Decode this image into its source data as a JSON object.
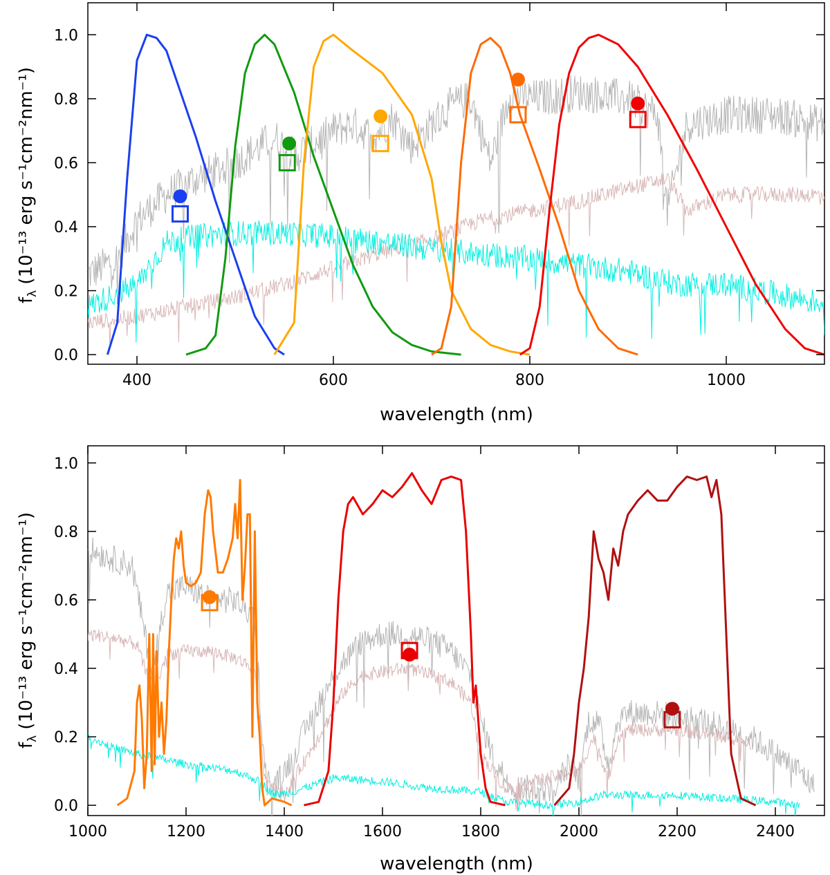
{
  "chart_data": [
    {
      "type": "line",
      "title": "",
      "xlabel": "wavelength (nm)",
      "ylabel_main": "f",
      "ylabel_sub": "λ",
      "ylabel_rest": " (10⁻¹³ erg s⁻¹cm⁻²nm⁻¹)",
      "xlim": [
        350,
        1100
      ],
      "ylim": [
        -0.03,
        1.1
      ],
      "xticks": [
        400,
        600,
        800,
        1000
      ],
      "xtick_labels": [
        "400",
        "600",
        "800",
        "1000"
      ],
      "yticks": [
        0.0,
        0.2,
        0.4,
        0.6,
        0.8,
        1.0
      ],
      "ytick_labels": [
        "0.0",
        "0.2",
        "0.4",
        "0.6",
        "0.8",
        "1.0"
      ],
      "spectra": [
        {
          "name": "grey spectrum",
          "color": "#b4b4b4",
          "noise": 0.06,
          "x": [
            350,
            380,
            400,
            430,
            460,
            500,
            540,
            560,
            600,
            620,
            640,
            660,
            680,
            700,
            720,
            740,
            760,
            780,
            800,
            850,
            900,
            930,
            940,
            960,
            1000,
            1050,
            1100
          ],
          "y": [
            0.25,
            0.3,
            0.42,
            0.5,
            0.55,
            0.6,
            0.68,
            0.62,
            0.7,
            0.72,
            0.68,
            0.74,
            0.65,
            0.72,
            0.78,
            0.8,
            0.6,
            0.82,
            0.8,
            0.82,
            0.8,
            0.75,
            0.45,
            0.72,
            0.75,
            0.75,
            0.72
          ]
        },
        {
          "name": "pink spectrum",
          "color": "#d8b6b6",
          "noise": 0.025,
          "x": [
            350,
            400,
            450,
            500,
            550,
            600,
            650,
            700,
            750,
            800,
            850,
            900,
            940,
            960,
            1000,
            1050,
            1100
          ],
          "y": [
            0.1,
            0.12,
            0.15,
            0.18,
            0.22,
            0.27,
            0.32,
            0.36,
            0.42,
            0.45,
            0.48,
            0.52,
            0.55,
            0.45,
            0.5,
            0.5,
            0.5
          ]
        },
        {
          "name": "cyan spectrum",
          "color": "#00efe0",
          "noise": 0.04,
          "x": [
            350,
            400,
            430,
            460,
            500,
            550,
            600,
            700,
            800,
            900,
            950,
            1000,
            1050,
            1100
          ],
          "y": [
            0.15,
            0.22,
            0.35,
            0.37,
            0.38,
            0.38,
            0.37,
            0.33,
            0.3,
            0.26,
            0.22,
            0.22,
            0.19,
            0.16
          ]
        }
      ],
      "series": [
        {
          "name": "blue filter",
          "color": "#1a3ff0",
          "x": [
            370,
            380,
            390,
            400,
            410,
            420,
            430,
            440,
            460,
            480,
            500,
            520,
            540,
            550
          ],
          "y": [
            0.0,
            0.1,
            0.55,
            0.92,
            1.0,
            0.99,
            0.95,
            0.86,
            0.68,
            0.48,
            0.3,
            0.12,
            0.02,
            0.0
          ]
        },
        {
          "name": "green filter",
          "color": "#109a10",
          "x": [
            450,
            470,
            480,
            490,
            500,
            510,
            520,
            530,
            540,
            560,
            580,
            600,
            620,
            640,
            660,
            680,
            700,
            730
          ],
          "y": [
            0.0,
            0.02,
            0.06,
            0.3,
            0.65,
            0.88,
            0.97,
            1.0,
            0.97,
            0.82,
            0.62,
            0.45,
            0.28,
            0.15,
            0.07,
            0.03,
            0.01,
            0.0
          ]
        },
        {
          "name": "yellow filter",
          "color": "#ffa800",
          "x": [
            540,
            560,
            570,
            580,
            590,
            600,
            620,
            650,
            680,
            700,
            710,
            720,
            740,
            760,
            780,
            800
          ],
          "y": [
            0.0,
            0.1,
            0.6,
            0.9,
            0.98,
            1.0,
            0.95,
            0.88,
            0.75,
            0.55,
            0.35,
            0.2,
            0.08,
            0.03,
            0.01,
            0.0
          ]
        },
        {
          "name": "orange filter",
          "color": "#ff6a00",
          "x": [
            700,
            710,
            720,
            730,
            740,
            750,
            760,
            770,
            780,
            790,
            810,
            830,
            850,
            870,
            890,
            910
          ],
          "y": [
            0.0,
            0.02,
            0.15,
            0.6,
            0.88,
            0.97,
            0.99,
            0.96,
            0.88,
            0.75,
            0.58,
            0.4,
            0.2,
            0.08,
            0.02,
            0.0
          ]
        },
        {
          "name": "red filter",
          "color": "#f00000",
          "x": [
            790,
            800,
            810,
            820,
            830,
            840,
            850,
            860,
            870,
            890,
            910,
            940,
            970,
            1000,
            1030,
            1060,
            1080,
            1100
          ],
          "y": [
            0.0,
            0.02,
            0.15,
            0.45,
            0.72,
            0.88,
            0.96,
            0.99,
            1.0,
            0.97,
            0.9,
            0.75,
            0.58,
            0.4,
            0.22,
            0.08,
            0.02,
            0.0
          ]
        }
      ],
      "markers": [
        {
          "kind": "circle",
          "x": 444,
          "y": 0.495,
          "color": "#1a3ff0"
        },
        {
          "kind": "square",
          "x": 444,
          "y": 0.44,
          "color": "#1a3ff0"
        },
        {
          "kind": "circle",
          "x": 555,
          "y": 0.66,
          "color": "#109a10"
        },
        {
          "kind": "square",
          "x": 553,
          "y": 0.6,
          "color": "#109a10"
        },
        {
          "kind": "circle",
          "x": 648,
          "y": 0.745,
          "color": "#ffa800"
        },
        {
          "kind": "square",
          "x": 648,
          "y": 0.66,
          "color": "#ffa800"
        },
        {
          "kind": "circle",
          "x": 788,
          "y": 0.86,
          "color": "#ff6a00"
        },
        {
          "kind": "square",
          "x": 788,
          "y": 0.75,
          "color": "#ff6a00"
        },
        {
          "kind": "circle",
          "x": 910,
          "y": 0.785,
          "color": "#f00000"
        },
        {
          "kind": "square",
          "x": 910,
          "y": 0.735,
          "color": "#f00000"
        }
      ]
    },
    {
      "type": "line",
      "title": "",
      "xlabel": "wavelength (nm)",
      "ylabel_main": "f",
      "ylabel_sub": "λ",
      "ylabel_rest": " (10⁻¹³ erg s⁻¹cm⁻²nm⁻¹)",
      "xlim": [
        1000,
        2500
      ],
      "ylim": [
        -0.03,
        1.05
      ],
      "xticks": [
        1000,
        1200,
        1400,
        1600,
        1800,
        2000,
        2200,
        2400
      ],
      "xtick_labels": [
        "1000",
        "1200",
        "1400",
        "1600",
        "1800",
        "2000",
        "2200",
        "2400"
      ],
      "yticks": [
        0.0,
        0.2,
        0.4,
        0.6,
        0.8,
        1.0
      ],
      "ytick_labels": [
        "0.0",
        "0.2",
        "0.4",
        "0.6",
        "0.8",
        "1.0"
      ],
      "spectra": [
        {
          "name": "grey spectrum",
          "color": "#b4b4b4",
          "noise": 0.04,
          "x": [
            1000,
            1050,
            1090,
            1110,
            1130,
            1160,
            1200,
            1250,
            1300,
            1340,
            1360,
            1380,
            1420,
            1470,
            1520,
            1560,
            1600,
            1650,
            1700,
            1740,
            1780,
            1800,
            1830,
            1870,
            1950,
            1980,
            2000,
            2020,
            2040,
            2060,
            2080,
            2100,
            2150,
            2200,
            2250,
            2300,
            2350,
            2400,
            2450,
            2480
          ],
          "y": [
            0.75,
            0.72,
            0.7,
            0.55,
            0.38,
            0.62,
            0.64,
            0.6,
            0.6,
            0.55,
            0.1,
            0.05,
            0.15,
            0.3,
            0.42,
            0.48,
            0.5,
            0.5,
            0.48,
            0.45,
            0.38,
            0.25,
            0.12,
            0.05,
            0.05,
            0.12,
            0.08,
            0.25,
            0.24,
            0.12,
            0.25,
            0.27,
            0.27,
            0.26,
            0.25,
            0.22,
            0.2,
            0.15,
            0.1,
            0.05
          ]
        },
        {
          "name": "pink spectrum",
          "color": "#d8b6b6",
          "noise": 0.02,
          "x": [
            1000,
            1050,
            1100,
            1120,
            1140,
            1160,
            1200,
            1250,
            1300,
            1340,
            1360,
            1400,
            1470,
            1520,
            1560,
            1600,
            1650,
            1700,
            1740,
            1780,
            1800,
            1850,
            2000,
            2030,
            2060,
            2080,
            2100,
            2150,
            2200,
            2250,
            2300,
            2350
          ],
          "y": [
            0.5,
            0.49,
            0.47,
            0.38,
            0.35,
            0.44,
            0.45,
            0.45,
            0.43,
            0.4,
            0.08,
            0.03,
            0.2,
            0.33,
            0.38,
            0.39,
            0.4,
            0.38,
            0.36,
            0.3,
            0.15,
            0.05,
            0.1,
            0.2,
            0.08,
            0.2,
            0.22,
            0.22,
            0.22,
            0.21,
            0.2,
            0.18
          ]
        },
        {
          "name": "cyan spectrum",
          "color": "#00efe0",
          "noise": 0.012,
          "x": [
            1000,
            1050,
            1100,
            1200,
            1300,
            1350,
            1380,
            1420,
            1500,
            1600,
            1700,
            1800,
            1850,
            1950,
            2000,
            2050,
            2100,
            2200,
            2300,
            2400,
            2450
          ],
          "y": [
            0.2,
            0.17,
            0.15,
            0.12,
            0.1,
            0.07,
            0.03,
            0.04,
            0.08,
            0.07,
            0.05,
            0.04,
            0.01,
            0.0,
            0.01,
            0.03,
            0.03,
            0.03,
            0.02,
            0.01,
            0.0
          ]
        }
      ],
      "series": [
        {
          "name": "J filter",
          "color": "#ff7a00",
          "x": [
            1060,
            1080,
            1095,
            1100,
            1105,
            1110,
            1115,
            1120,
            1125,
            1130,
            1133,
            1136,
            1140,
            1145,
            1150,
            1155,
            1160,
            1165,
            1170,
            1175,
            1180,
            1185,
            1190,
            1195,
            1200,
            1210,
            1220,
            1230,
            1238,
            1245,
            1250,
            1255,
            1265,
            1275,
            1285,
            1295,
            1300,
            1305,
            1310,
            1315,
            1320,
            1325,
            1330,
            1335,
            1340,
            1345,
            1350,
            1355,
            1360,
            1375,
            1400,
            1415
          ],
          "y": [
            0.0,
            0.02,
            0.1,
            0.3,
            0.35,
            0.25,
            0.05,
            0.15,
            0.5,
            0.1,
            0.5,
            0.12,
            0.45,
            0.2,
            0.3,
            0.15,
            0.25,
            0.45,
            0.6,
            0.72,
            0.78,
            0.75,
            0.8,
            0.7,
            0.65,
            0.64,
            0.65,
            0.68,
            0.85,
            0.92,
            0.9,
            0.8,
            0.68,
            0.68,
            0.72,
            0.78,
            0.88,
            0.78,
            0.95,
            0.6,
            0.7,
            0.85,
            0.85,
            0.2,
            0.8,
            0.3,
            0.2,
            0.05,
            0.0,
            0.02,
            0.01,
            0.0
          ]
        },
        {
          "name": "H filter",
          "color": "#e80000",
          "x": [
            1440,
            1470,
            1490,
            1500,
            1510,
            1520,
            1530,
            1540,
            1560,
            1580,
            1600,
            1620,
            1640,
            1660,
            1680,
            1700,
            1720,
            1740,
            1760,
            1770,
            1780,
            1785,
            1790,
            1800,
            1810,
            1820,
            1850
          ],
          "y": [
            0.0,
            0.01,
            0.1,
            0.3,
            0.6,
            0.8,
            0.88,
            0.9,
            0.85,
            0.88,
            0.92,
            0.9,
            0.93,
            0.97,
            0.92,
            0.88,
            0.95,
            0.96,
            0.95,
            0.8,
            0.5,
            0.3,
            0.35,
            0.15,
            0.05,
            0.01,
            0.0
          ]
        },
        {
          "name": "K filter",
          "color": "#b01010",
          "x": [
            1950,
            1980,
            1990,
            2000,
            2010,
            2020,
            2030,
            2040,
            2050,
            2060,
            2070,
            2080,
            2090,
            2100,
            2120,
            2140,
            2160,
            2180,
            2200,
            2220,
            2240,
            2260,
            2270,
            2280,
            2290,
            2300,
            2310,
            2330,
            2360
          ],
          "y": [
            0.0,
            0.05,
            0.15,
            0.3,
            0.4,
            0.55,
            0.8,
            0.72,
            0.68,
            0.6,
            0.75,
            0.7,
            0.8,
            0.85,
            0.89,
            0.92,
            0.89,
            0.89,
            0.93,
            0.96,
            0.95,
            0.96,
            0.9,
            0.95,
            0.85,
            0.5,
            0.15,
            0.02,
            0.0
          ]
        }
      ],
      "markers": [
        {
          "kind": "circle",
          "x": 1248,
          "y": 0.608,
          "color": "#ff7a00"
        },
        {
          "kind": "square",
          "x": 1248,
          "y": 0.592,
          "color": "#ff7a00"
        },
        {
          "kind": "square",
          "x": 1655,
          "y": 0.452,
          "color": "#e80000"
        },
        {
          "kind": "circle",
          "x": 1655,
          "y": 0.44,
          "color": "#e80000"
        },
        {
          "kind": "circle",
          "x": 2190,
          "y": 0.282,
          "color": "#b01010"
        },
        {
          "kind": "square",
          "x": 2190,
          "y": 0.25,
          "color": "#b01010"
        }
      ]
    }
  ]
}
